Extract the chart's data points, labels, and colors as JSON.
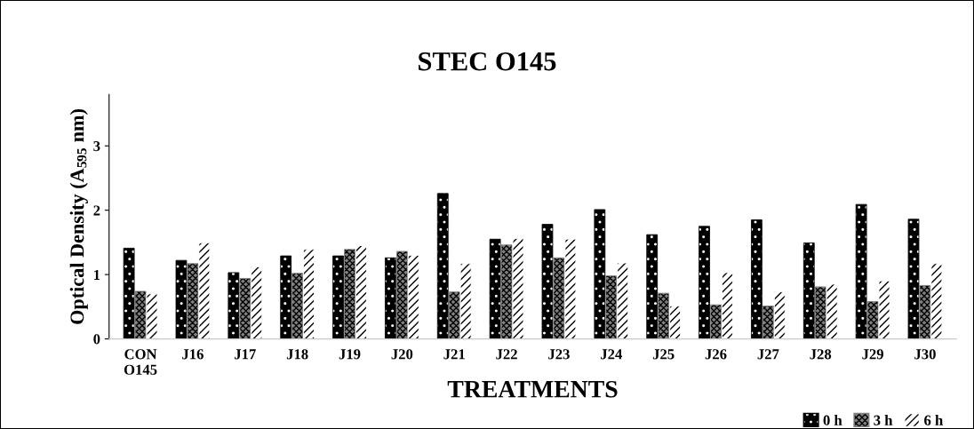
{
  "chart_data": {
    "type": "bar",
    "title": "STEC O145",
    "xlabel": "TREATMENTS",
    "ylabel": "Optical Density (A$_{595}$ nm)",
    "categories": [
      "CON\nO145",
      "J16",
      "J17",
      "J18",
      "J19",
      "J20",
      "J21",
      "J22",
      "J23",
      "J24",
      "J25",
      "J26",
      "J27",
      "J28",
      "J29",
      "J30"
    ],
    "series": [
      {
        "name": "0 h",
        "color": "#000000",
        "values": [
          1.41,
          1.22,
          1.03,
          1.29,
          1.29,
          1.26,
          2.26,
          1.55,
          1.78,
          2.01,
          1.62,
          1.75,
          1.85,
          1.49,
          2.09,
          1.86
        ]
      },
      {
        "name": "3 h",
        "color": "#808080",
        "values": [
          0.74,
          1.17,
          0.94,
          1.02,
          1.39,
          1.36,
          0.73,
          1.46,
          1.26,
          0.98,
          0.71,
          0.53,
          0.51,
          0.81,
          0.58,
          0.83
        ]
      },
      {
        "name": "6 h",
        "color": "#ffffff",
        "values": [
          0.7,
          1.49,
          1.12,
          1.39,
          1.45,
          1.3,
          1.17,
          1.56,
          1.55,
          1.18,
          0.51,
          1.03,
          0.73,
          0.85,
          0.9,
          1.17
        ]
      }
    ],
    "ylim": [
      0,
      3.8
    ],
    "yticks": [
      0,
      1,
      2,
      3
    ],
    "grid": false,
    "legend": "bottom right"
  }
}
